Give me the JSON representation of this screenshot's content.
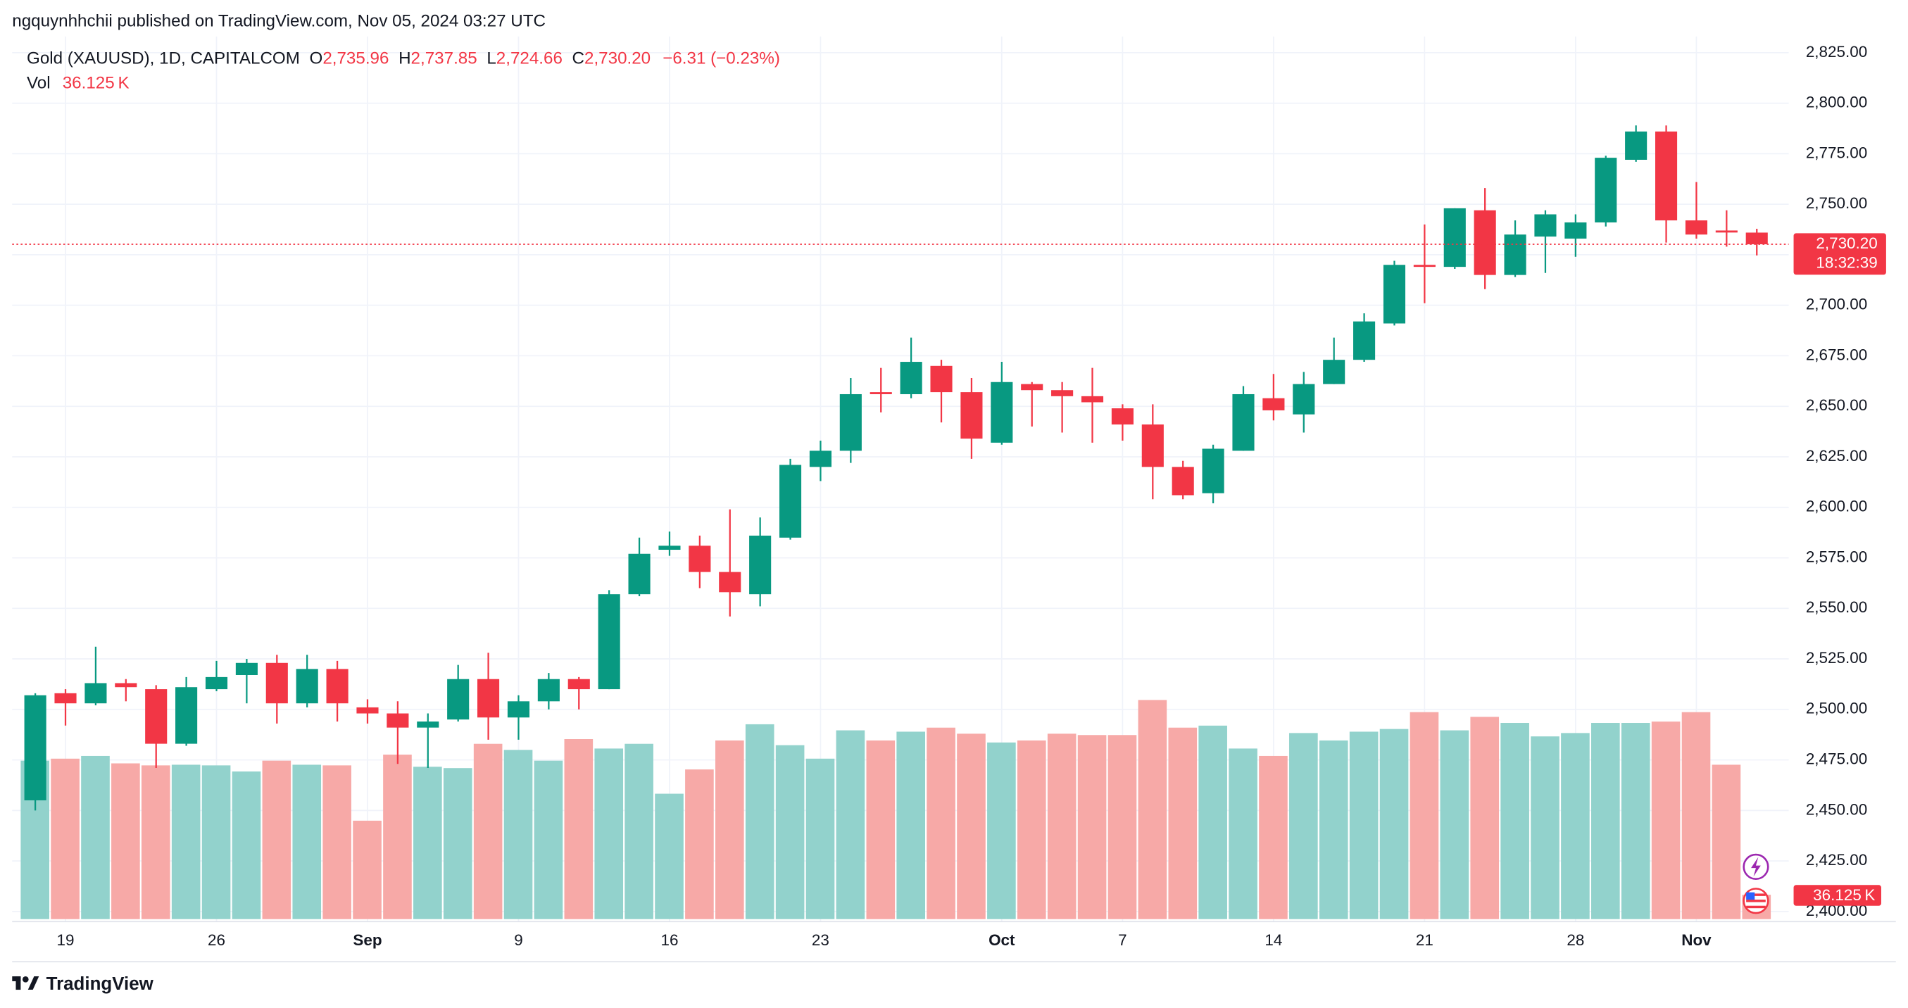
{
  "page": {
    "published": "ngquynhhchii published on TradingView.com, Nov 05, 2024 03:27 UTC",
    "brand": "TradingView"
  },
  "chart_data": {
    "type": "candlestick",
    "header": {
      "symbol": "Gold (XAUUSD), 1D, CAPITALCOM",
      "ohlc": [
        {
          "key": "O",
          "label": "2,735.96"
        },
        {
          "key": "H",
          "label": "2,737.85"
        },
        {
          "key": "L",
          "label": "2,724.66"
        },
        {
          "key": "C",
          "label": "2,730.20"
        }
      ],
      "change": "−6.31 (−0.23%)",
      "vol_key": "Vol",
      "vol_value": "36.125 K"
    },
    "categories": [
      null,
      "19",
      null,
      null,
      null,
      null,
      "26",
      null,
      null,
      null,
      null,
      "Sep",
      null,
      null,
      null,
      null,
      "9",
      null,
      null,
      null,
      null,
      "16",
      null,
      null,
      null,
      null,
      "23",
      null,
      null,
      null,
      null,
      null,
      "Oct",
      null,
      null,
      null,
      "7",
      null,
      null,
      null,
      null,
      "14",
      null,
      null,
      null,
      null,
      "21",
      null,
      null,
      null,
      null,
      "28",
      null,
      null,
      null,
      "Nov",
      null,
      null
    ],
    "open": [
      2455,
      2508,
      2503,
      2513,
      2510,
      2483,
      2510,
      2517,
      2523,
      2503,
      2520,
      2501,
      2498,
      2491,
      2495,
      2515,
      2496,
      2504,
      2515,
      2510,
      2557,
      2579,
      2581,
      2568,
      2557,
      2585,
      2620,
      2628,
      2657,
      2656,
      2670,
      2657,
      2632,
      2661,
      2658,
      2655,
      2649,
      2641,
      2620,
      2607,
      2628,
      2654,
      2646,
      2661,
      2673,
      2691,
      2720,
      2719,
      2747,
      2715,
      2734,
      2733,
      2741,
      2772,
      2786,
      2742,
      2737,
      2735.96
    ],
    "high": [
      2508,
      2510,
      2531,
      2515,
      2512,
      2516,
      2524,
      2525,
      2527,
      2527,
      2524,
      2505,
      2504,
      2498,
      2522,
      2528,
      2507,
      2518,
      2516,
      2559,
      2585,
      2588,
      2586,
      2599,
      2595,
      2624,
      2633,
      2664,
      2669,
      2684,
      2673,
      2664,
      2672,
      2662,
      2662,
      2669,
      2651,
      2651,
      2623,
      2631,
      2660,
      2666,
      2667,
      2684,
      2696,
      2722,
      2740,
      2748,
      2758,
      2742,
      2747,
      2745,
      2774,
      2789,
      2789,
      2761,
      2747,
      2737.85
    ],
    "low": [
      2450,
      2492,
      2502,
      2504,
      2471,
      2482,
      2509,
      2503,
      2493,
      2501,
      2494,
      2493,
      2473,
      2471,
      2494,
      2485,
      2485,
      2500,
      2500,
      2510,
      2556,
      2576,
      2560,
      2546,
      2551,
      2584,
      2613,
      2622,
      2647,
      2654,
      2642,
      2624,
      2631,
      2640,
      2637,
      2632,
      2633,
      2604,
      2604,
      2602,
      2628,
      2643,
      2637,
      2661,
      2672,
      2690,
      2701,
      2718,
      2708,
      2714,
      2716,
      2724,
      2739,
      2771,
      2731,
      2733,
      2729,
      2724.66
    ],
    "close": [
      2507,
      2503,
      2513,
      2511,
      2483,
      2511,
      2516,
      2523,
      2503,
      2520,
      2503,
      2498,
      2491,
      2494,
      2515,
      2496,
      2504,
      2515,
      2510,
      2557,
      2577,
      2581,
      2568,
      2558,
      2586,
      2621,
      2628,
      2656,
      2656,
      2672,
      2657,
      2634,
      2662,
      2658,
      2655,
      2652,
      2641,
      2620,
      2606,
      2629,
      2656,
      2648,
      2661,
      2673,
      2692,
      2720,
      2719,
      2748,
      2715,
      2735,
      2745,
      2741,
      2773,
      2786,
      2742,
      2735,
      2736,
      2730.2
    ],
    "volume": [
      235000,
      238000,
      242000,
      231000,
      228000,
      229000,
      228000,
      219000,
      235000,
      229000,
      228000,
      146000,
      244000,
      226000,
      224000,
      260000,
      251000,
      235000,
      267000,
      253000,
      260000,
      186000,
      222000,
      265000,
      289000,
      258000,
      238000,
      280000,
      265000,
      278000,
      284000,
      275000,
      262000,
      265000,
      275000,
      273000,
      273000,
      325000,
      284000,
      287000,
      253000,
      242000,
      276000,
      265000,
      278000,
      282000,
      307000,
      280000,
      300000,
      291000,
      271000,
      276000,
      291000,
      291000,
      293000,
      307000,
      229000,
      36125
    ],
    "volume_label": "36.125 K",
    "up_color": "#089981",
    "down_color": "#f23645",
    "volume_up_color": "#92d2cc",
    "volume_down_color": "#f7a9a7",
    "ylim": [
      2395,
      2833
    ],
    "yticks": [
      {
        "value": 2400,
        "label": "2,400.00"
      },
      {
        "value": 2425,
        "label": "2,425.00"
      },
      {
        "value": 2450,
        "label": "2,450.00"
      },
      {
        "value": 2475,
        "label": "2,475.00"
      },
      {
        "value": 2500,
        "label": "2,500.00"
      },
      {
        "value": 2525,
        "label": "2,525.00"
      },
      {
        "value": 2550,
        "label": "2,550.00"
      },
      {
        "value": 2575,
        "label": "2,575.00"
      },
      {
        "value": 2600,
        "label": "2,600.00"
      },
      {
        "value": 2625,
        "label": "2,625.00"
      },
      {
        "value": 2650,
        "label": "2,650.00"
      },
      {
        "value": 2675,
        "label": "2,675.00"
      },
      {
        "value": 2700,
        "label": "2,700.00"
      },
      {
        "value": 2725,
        "label": "2,725.00"
      },
      {
        "value": 2750,
        "label": "2,750.00"
      },
      {
        "value": 2775,
        "label": "2,775.00"
      },
      {
        "value": 2800,
        "label": "2,800.00"
      },
      {
        "value": 2825,
        "label": "2,825.00"
      }
    ],
    "grid": true,
    "price_line": {
      "value": 2730.2,
      "label": "2,730.20",
      "countdown": "18:32:39"
    }
  }
}
